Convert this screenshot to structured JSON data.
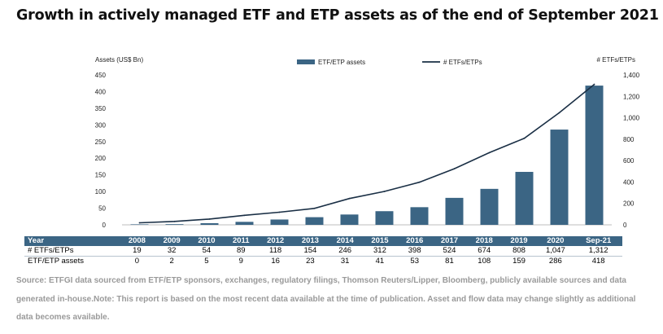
{
  "title": "Growth in actively managed ETF and ETP assets as of the end of September 2021",
  "colors": {
    "bar": "#3b6584",
    "line": "#1a2f45",
    "header_bg": "#3b6584"
  },
  "chart_data": {
    "type": "bar",
    "categories": [
      "2008",
      "2009",
      "2010",
      "2011",
      "2012",
      "2013",
      "2014",
      "2015",
      "2016",
      "2017",
      "2018",
      "2019",
      "2020",
      "Sep-21"
    ],
    "series": [
      {
        "name": "ETF/ETP assets",
        "type": "bar",
        "axis": "left",
        "values": [
          0,
          2,
          5,
          9,
          16,
          23,
          31,
          41,
          53,
          81,
          108,
          159,
          286,
          418
        ]
      },
      {
        "name": "# ETFs/ETPs",
        "type": "line",
        "axis": "right",
        "values": [
          19,
          32,
          54,
          89,
          118,
          154,
          246,
          312,
          398,
          524,
          674,
          808,
          1047,
          1312
        ]
      }
    ],
    "ylabel_left": "Assets (US$ Bn)",
    "ylabel_right": "# ETFs/ETPs",
    "ylim_left": [
      0,
      450
    ],
    "ylim_right": [
      0,
      1400
    ],
    "yticks_left": [
      "0",
      "50",
      "100",
      "150",
      "200",
      "250",
      "300",
      "350",
      "400",
      "450"
    ],
    "yticks_right": [
      "0",
      "200",
      "400",
      "600",
      "800",
      "1,000",
      "1,200",
      "1,400"
    ],
    "legend_position": "top-center",
    "grid": false
  },
  "table": {
    "header_label": "Year",
    "years": [
      "2008",
      "2009",
      "2010",
      "2011",
      "2012",
      "2013",
      "2014",
      "2015",
      "2016",
      "2017",
      "2018",
      "2019",
      "2020",
      "Sep-21"
    ],
    "rows": [
      {
        "label": "# ETFs/ETPs",
        "values": [
          "19",
          "32",
          "54",
          "89",
          "118",
          "154",
          "246",
          "312",
          "398",
          "524",
          "674",
          "808",
          "1,047",
          "1,312"
        ]
      },
      {
        "label": "ETF/ETP assets",
        "values": [
          "0",
          "2",
          "5",
          "9",
          "16",
          "23",
          "31",
          "41",
          "53",
          "81",
          "108",
          "159",
          "286",
          "418"
        ]
      }
    ]
  },
  "source_text": "Source: ETFGI data sourced from ETF/ETP sponsors, exchanges, regulatory filings, Thomson Reuters/Lipper, Bloomberg, publicly available sources and data generated in-house.Note: This report is based on the most recent data available at the time of publication. Asset and flow data may change slightly as additional data becomes available."
}
